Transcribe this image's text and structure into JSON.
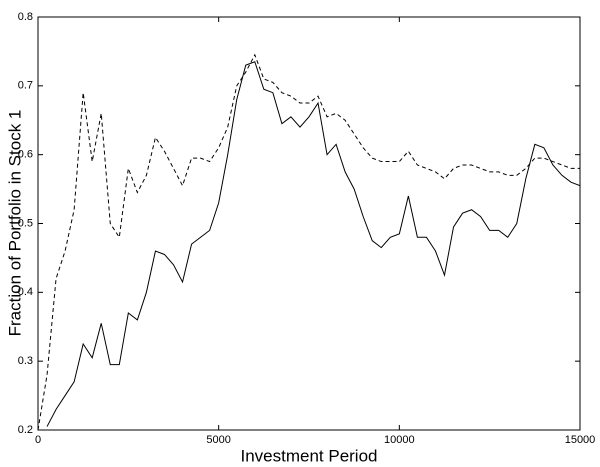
{
  "chart_data": {
    "type": "line",
    "xlabel": "Investment Period",
    "ylabel": "Fraction of Portfolio in Stock 1",
    "x": [
      0,
      250,
      500,
      750,
      1000,
      1250,
      1500,
      1750,
      2000,
      2250,
      2500,
      2750,
      3000,
      3250,
      3500,
      3750,
      4000,
      4250,
      4500,
      4750,
      5000,
      5250,
      5500,
      5750,
      6000,
      6250,
      6500,
      6750,
      7000,
      7250,
      7500,
      7750,
      8000,
      8250,
      8500,
      8750,
      9000,
      9250,
      9500,
      9750,
      10000,
      10250,
      10500,
      10750,
      11000,
      11250,
      11500,
      11750,
      12000,
      12250,
      12500,
      12750,
      13000,
      13250,
      13500,
      13750,
      14000,
      14250,
      14500,
      14750,
      15000
    ],
    "series": [
      {
        "color": "#000000",
        "style": "solid",
        "values": [
          null,
          0.205,
          0.23,
          0.25,
          0.27,
          0.325,
          0.305,
          0.355,
          0.295,
          0.295,
          0.37,
          0.36,
          0.4,
          0.46,
          0.455,
          0.44,
          0.415,
          0.47,
          0.48,
          0.49,
          0.53,
          0.6,
          0.68,
          0.73,
          0.735,
          0.695,
          0.69,
          0.645,
          0.655,
          0.64,
          0.655,
          0.675,
          0.6,
          0.615,
          0.575,
          0.55,
          0.51,
          0.475,
          0.465,
          0.48,
          0.485,
          0.54,
          0.48,
          0.48,
          0.46,
          0.425,
          0.495,
          0.515,
          0.52,
          0.51,
          0.49,
          0.49,
          0.48,
          0.5,
          0.565,
          0.615,
          0.61,
          0.585,
          0.57,
          0.56,
          0.555
        ]
      },
      {
        "color": "#000000",
        "style": "dashed",
        "values": [
          0.2,
          0.28,
          0.42,
          0.46,
          0.52,
          0.69,
          0.59,
          0.66,
          0.5,
          0.48,
          0.58,
          0.545,
          0.57,
          0.625,
          0.605,
          0.58,
          0.555,
          0.595,
          0.595,
          0.59,
          0.61,
          0.64,
          0.7,
          0.72,
          0.745,
          0.71,
          0.705,
          0.69,
          0.685,
          0.675,
          0.675,
          0.685,
          0.655,
          0.66,
          0.65,
          0.63,
          0.61,
          0.595,
          0.59,
          0.59,
          0.59,
          0.605,
          0.585,
          0.58,
          0.575,
          0.565,
          0.58,
          0.585,
          0.585,
          0.58,
          0.575,
          0.575,
          0.57,
          0.57,
          0.58,
          0.595,
          0.595,
          0.59,
          0.585,
          0.58,
          0.58
        ]
      }
    ],
    "xlim": [
      0,
      15000
    ],
    "xticks": [
      0,
      5000,
      10000,
      15000
    ],
    "ylim": [
      0.2,
      0.8
    ],
    "yticks": [
      0.2,
      0.3,
      0.4,
      0.5,
      0.6,
      0.7,
      0.8
    ],
    "grid": false
  }
}
